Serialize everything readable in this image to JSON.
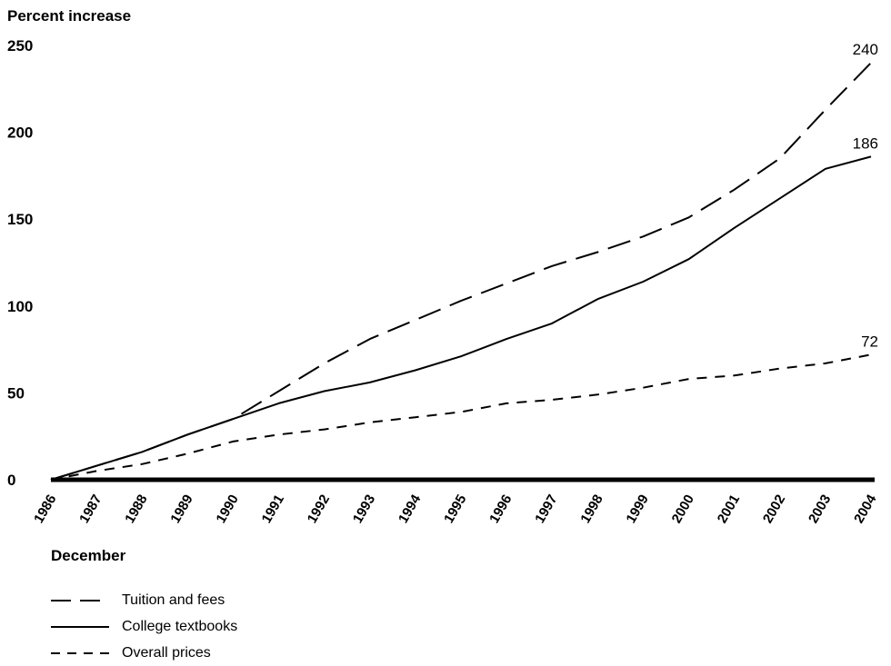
{
  "chart_data": {
    "type": "line",
    "ylabel": "Percent increase",
    "xlabel": "December",
    "ylim": [
      0,
      250
    ],
    "yticks": [
      0,
      50,
      100,
      150,
      200,
      250
    ],
    "categories": [
      "1986",
      "1987",
      "1988",
      "1989",
      "1990",
      "1991",
      "1992",
      "1993",
      "1994",
      "1995",
      "1996",
      "1997",
      "1998",
      "1999",
      "2000",
      "2001",
      "2002",
      "2003",
      "2004"
    ],
    "grid": false,
    "legend_position": "bottom-left",
    "series": [
      {
        "name": "Tuition and fees",
        "style": "long-dash",
        "end_label": "240",
        "values": [
          0,
          8,
          16,
          26,
          35,
          51,
          67,
          81,
          92,
          103,
          113,
          123,
          131,
          140,
          151,
          167,
          185,
          213,
          240
        ]
      },
      {
        "name": "College textbooks",
        "style": "solid",
        "end_label": "186",
        "values": [
          0,
          8,
          16,
          26,
          35,
          44,
          51,
          56,
          63,
          71,
          81,
          90,
          104,
          114,
          127,
          145,
          162,
          179,
          186
        ]
      },
      {
        "name": "Overall prices",
        "style": "short-dash",
        "end_label": "72",
        "values": [
          0,
          5,
          9,
          15,
          22,
          26,
          29,
          33,
          36,
          39,
          44,
          46,
          49,
          53,
          58,
          60,
          64,
          67,
          72
        ]
      }
    ],
    "colors": {
      "line": "#000000",
      "background": "#ffffff"
    }
  }
}
